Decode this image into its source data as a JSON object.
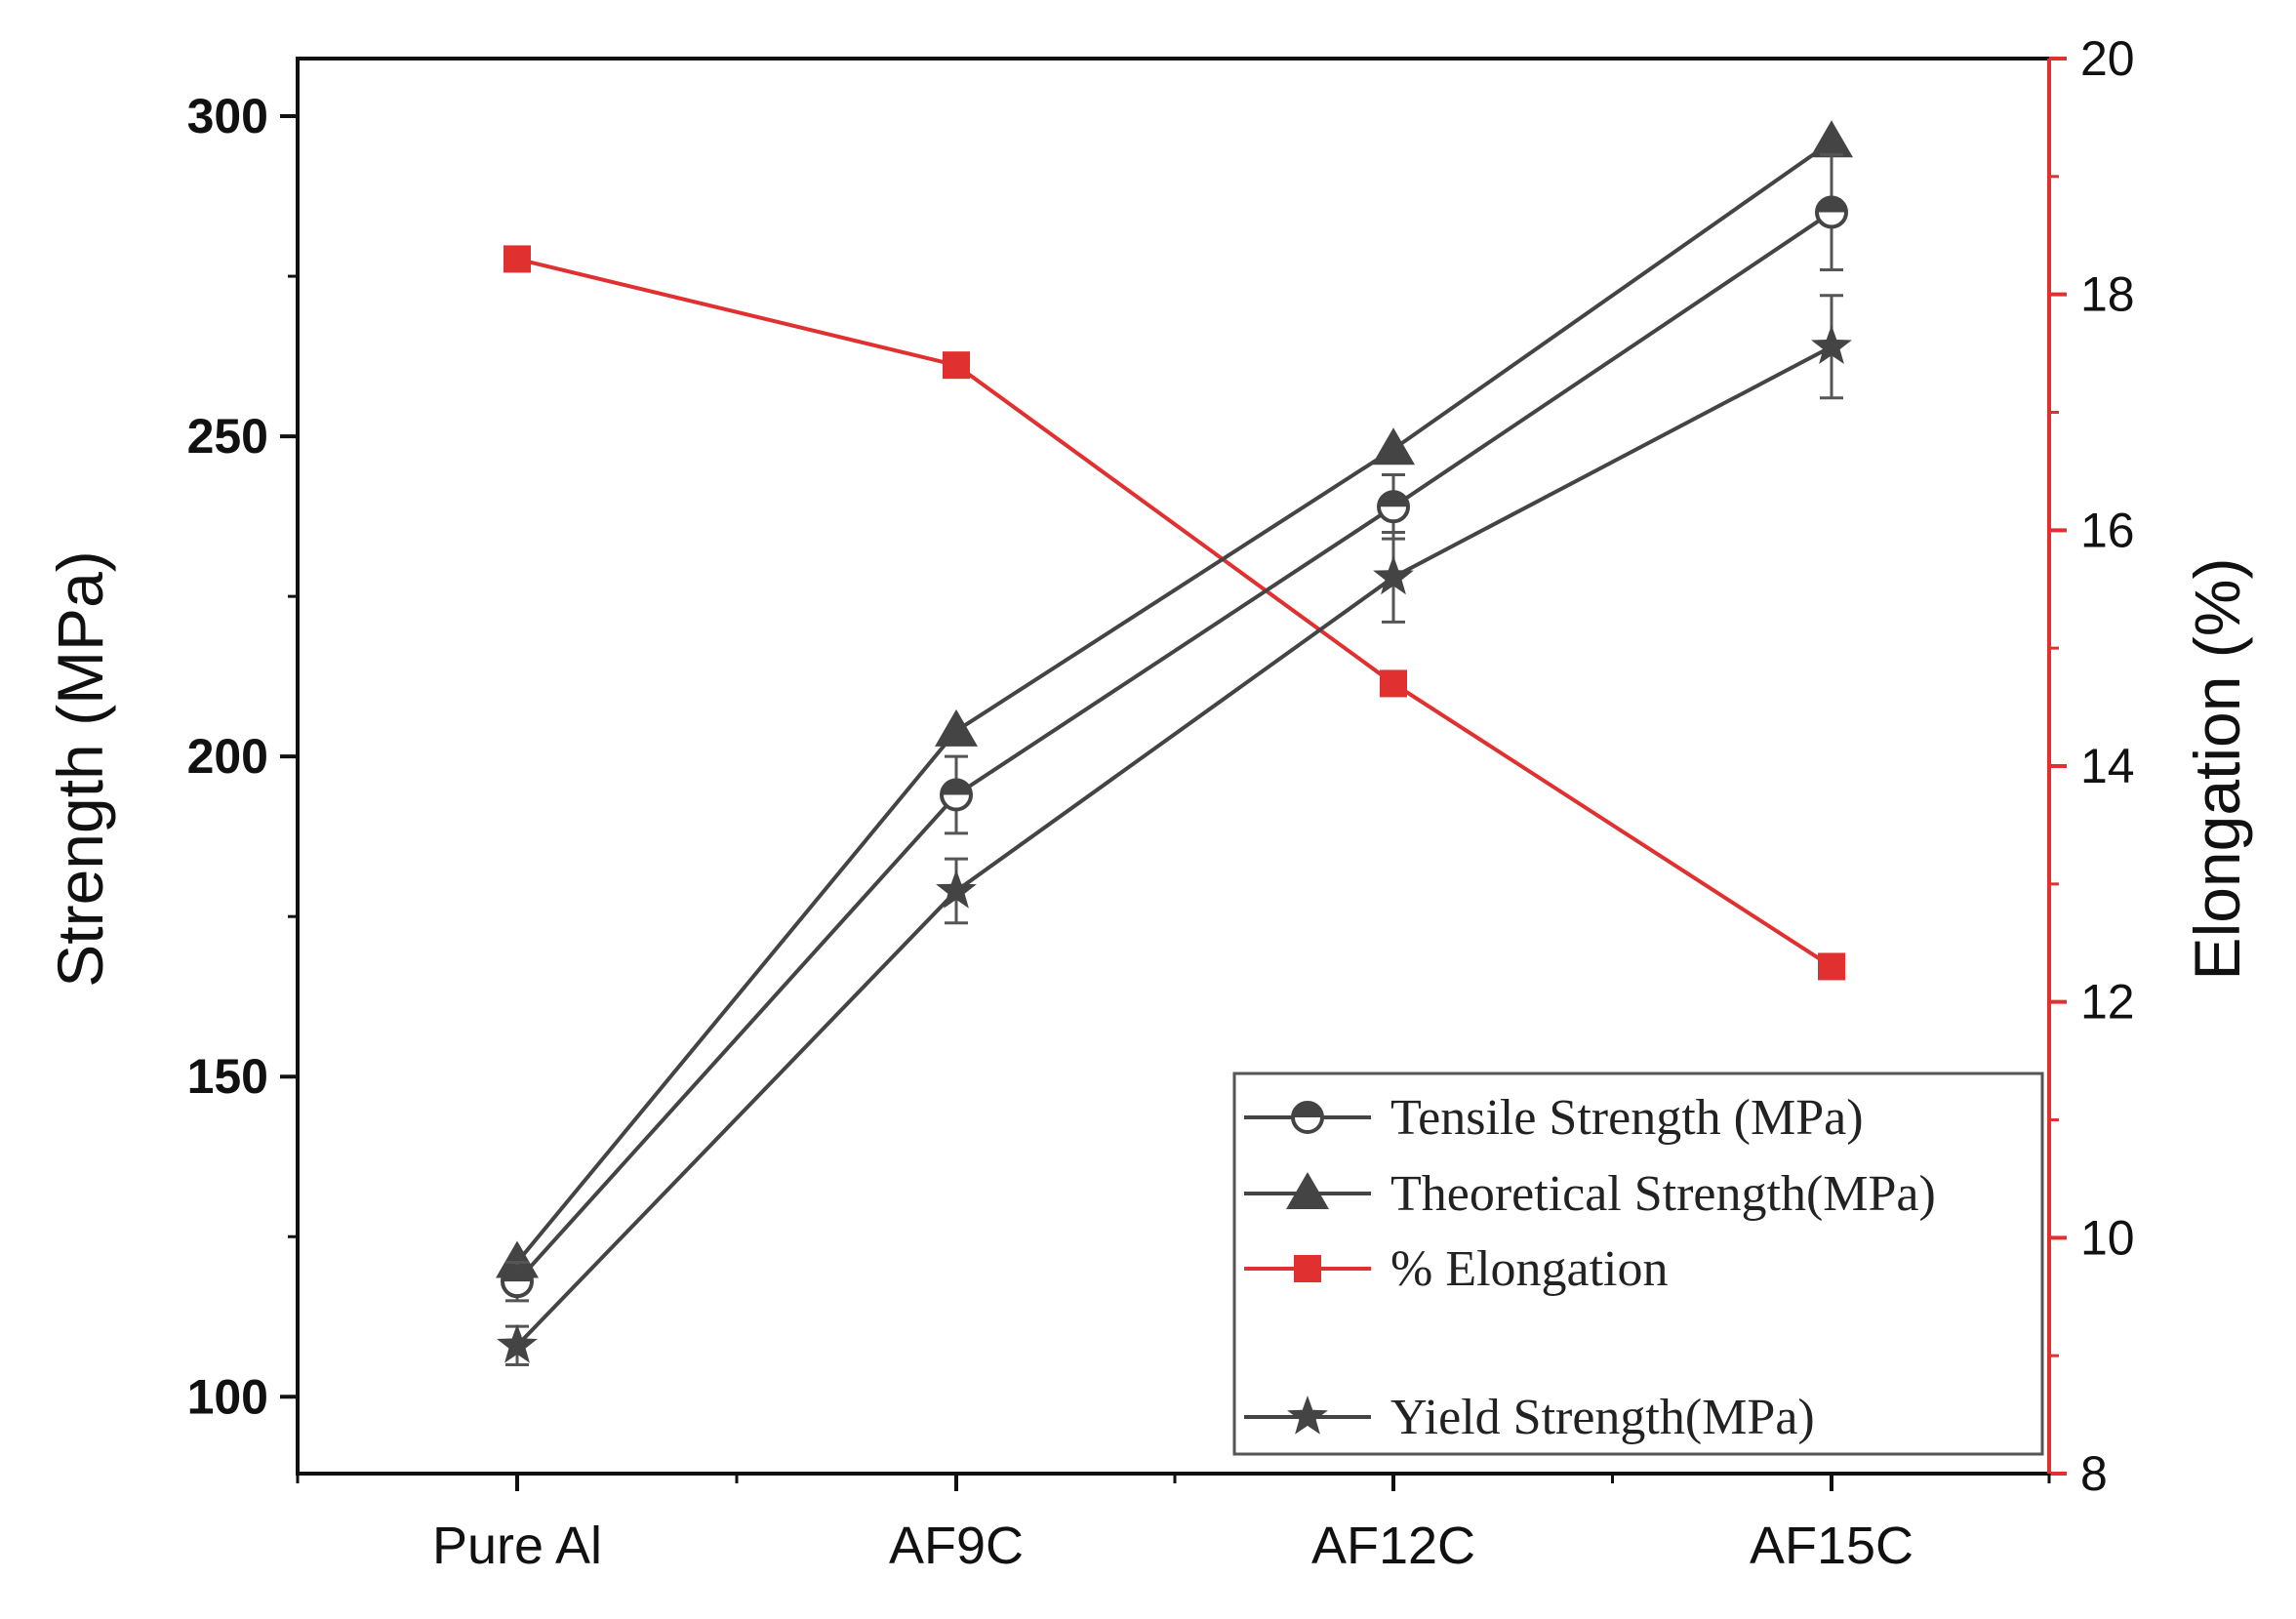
{
  "chart_data": {
    "type": "line",
    "categories": [
      "Pure Al",
      "AF9C",
      "AF12C",
      "AF15C"
    ],
    "ylabel": "Strength (MPa)",
    "y2label": "Elongation (%)",
    "ylim": [
      88,
      309
    ],
    "y2lim": [
      8,
      20
    ],
    "yticks": [
      100,
      150,
      200,
      250,
      300
    ],
    "y2ticks": [
      8,
      10,
      12,
      14,
      16,
      18,
      20
    ],
    "series": [
      {
        "name": "Tensile Strength (MPa)",
        "axis": "left",
        "marker": "half-circle",
        "color": "#444444",
        "values": [
          118,
          194,
          239,
          285
        ],
        "errors": [
          3,
          6,
          5,
          9
        ]
      },
      {
        "name": "Theoretical Strength(MPa)",
        "axis": "left",
        "marker": "triangle",
        "color": "#444444",
        "values": [
          121,
          204,
          248,
          296
        ]
      },
      {
        "name": "% Elongation",
        "axis": "right",
        "marker": "square",
        "color": "#e03030",
        "values": [
          18.3,
          17.4,
          14.7,
          12.3
        ]
      },
      {
        "name": "Yield Strength(MPa)",
        "axis": "left",
        "marker": "star",
        "color": "#444444",
        "values": [
          108,
          179,
          228,
          264
        ],
        "errors": [
          3,
          5,
          7,
          8
        ]
      }
    ],
    "legend": "bottom-right"
  }
}
